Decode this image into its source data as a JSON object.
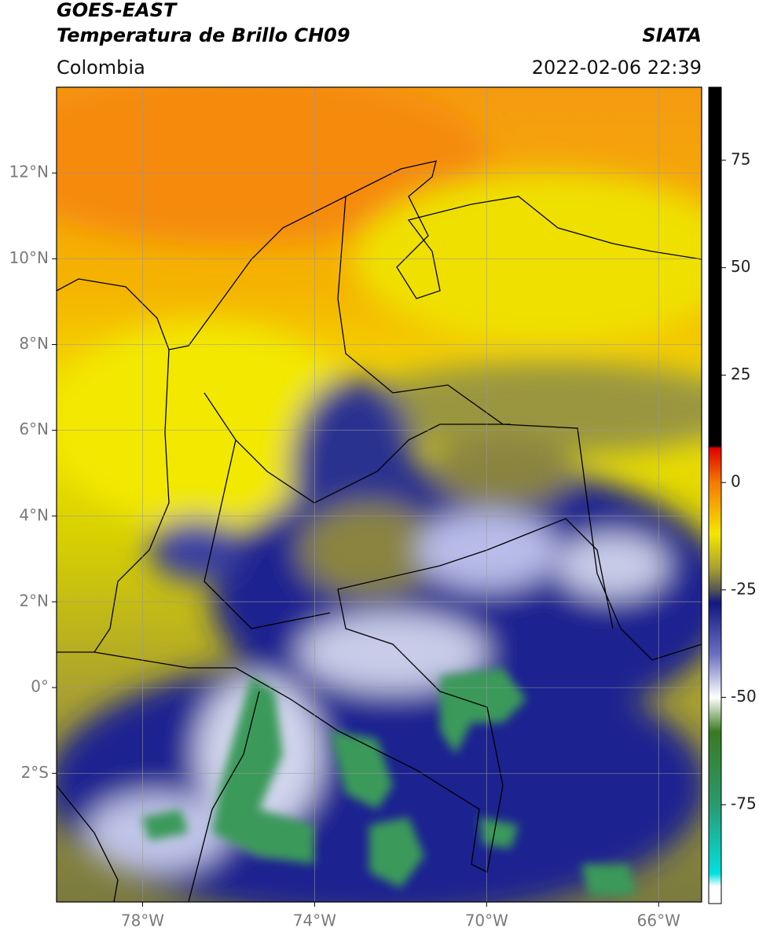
{
  "header": {
    "title": "GOES-EAST",
    "subtitle": "Temperatura de Brillo CH09",
    "region": "Colombia",
    "source": "SIATA",
    "datetime": "2022-02-06 22:39"
  },
  "map": {
    "lon_lim": [
      -80,
      -65
    ],
    "lat_lim": [
      -5,
      14
    ],
    "grid": true,
    "lon_ticks": [
      {
        "value": -78,
        "label": "78°W"
      },
      {
        "value": -74,
        "label": "74°W"
      },
      {
        "value": -70,
        "label": "70°W"
      },
      {
        "value": -66,
        "label": "66°W"
      }
    ],
    "lat_ticks": [
      {
        "value": 12,
        "label": "12°N"
      },
      {
        "value": 10,
        "label": "10°N"
      },
      {
        "value": 8,
        "label": "8°N"
      },
      {
        "value": 6,
        "label": "6°N"
      },
      {
        "value": 4,
        "label": "4°N"
      },
      {
        "value": 2,
        "label": "2°N"
      },
      {
        "value": 0,
        "label": "0°"
      },
      {
        "value": -2,
        "label": "2°S"
      }
    ]
  },
  "colorbar": {
    "lim": [
      -98,
      92
    ],
    "ticks": [
      75,
      50,
      25,
      0,
      -25,
      -50,
      -75
    ],
    "colormap": [
      {
        "value": 92,
        "color": "#000000"
      },
      {
        "value": 8.5,
        "color": "#000000"
      },
      {
        "value": 8,
        "color": "#e00000"
      },
      {
        "value": 0,
        "color": "#f57a00"
      },
      {
        "value": -12,
        "color": "#f5e600"
      },
      {
        "value": -20,
        "color": "#a8a030"
      },
      {
        "value": -25,
        "color": "#555555"
      },
      {
        "value": -28,
        "color": "#101880"
      },
      {
        "value": -40,
        "color": "#6a70c0"
      },
      {
        "value": -50,
        "color": "#ffffff"
      },
      {
        "value": -58,
        "color": "#3a7a20"
      },
      {
        "value": -75,
        "color": "#2a9a70"
      },
      {
        "value": -91,
        "color": "#00e0e0"
      },
      {
        "value": -94,
        "color": "#ffffff"
      },
      {
        "value": -98,
        "color": "#ffffff"
      }
    ]
  }
}
